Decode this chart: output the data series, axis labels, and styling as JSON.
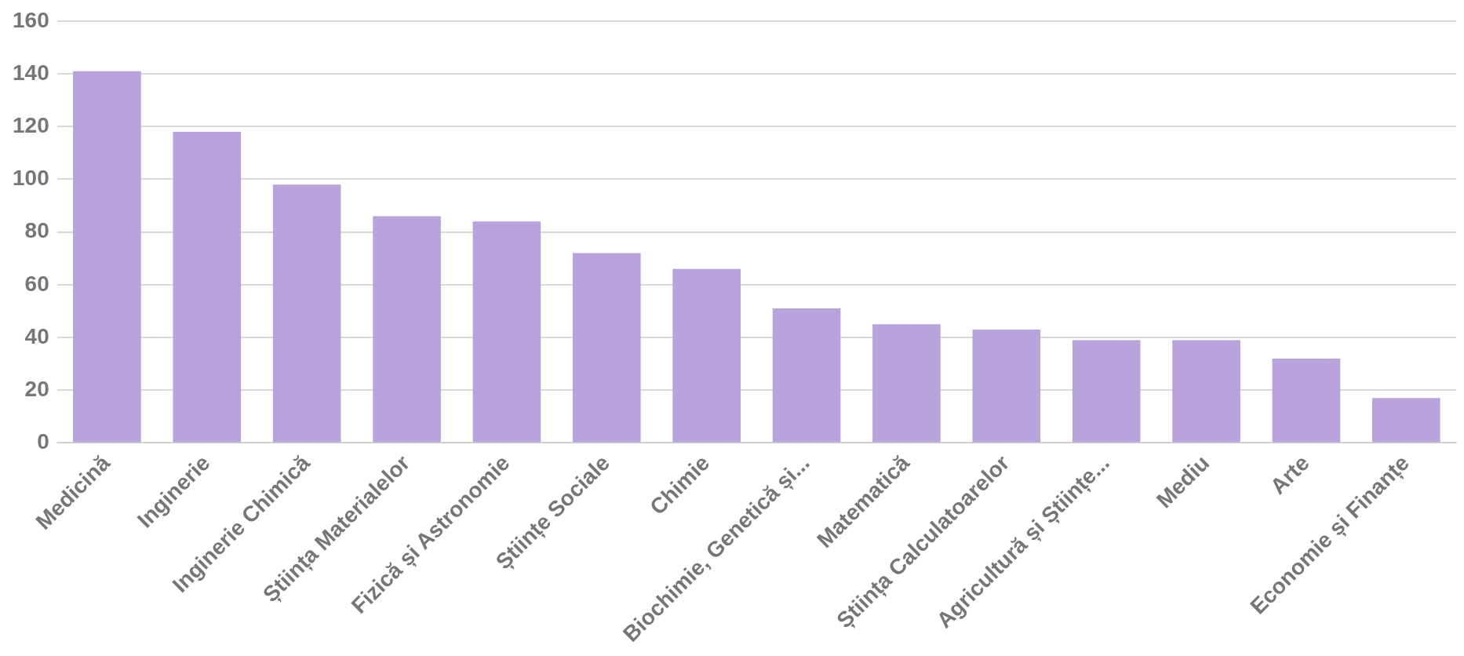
{
  "chart_data": {
    "type": "bar",
    "categories": [
      "Medicină",
      "Inginerie",
      "Inginerie Chimică",
      "Știința Materialelor",
      "Fizică și Astronomie",
      "Științe Sociale",
      "Chimie",
      "Biochimie, Genetică și...",
      "Matematică",
      "Știința Calculatoarelor",
      "Agricultură și Științe...",
      "Mediu",
      "Arte",
      "Economie și Finanțe"
    ],
    "values": [
      141,
      118,
      98,
      86,
      84,
      72,
      66,
      51,
      45,
      43,
      39,
      39,
      32,
      17
    ],
    "color": "#b9a3dc",
    "ylim": [
      0,
      160
    ],
    "yticks": [
      0,
      20,
      40,
      60,
      80,
      100,
      120,
      140,
      160
    ],
    "grid": "y",
    "legend": false
  }
}
